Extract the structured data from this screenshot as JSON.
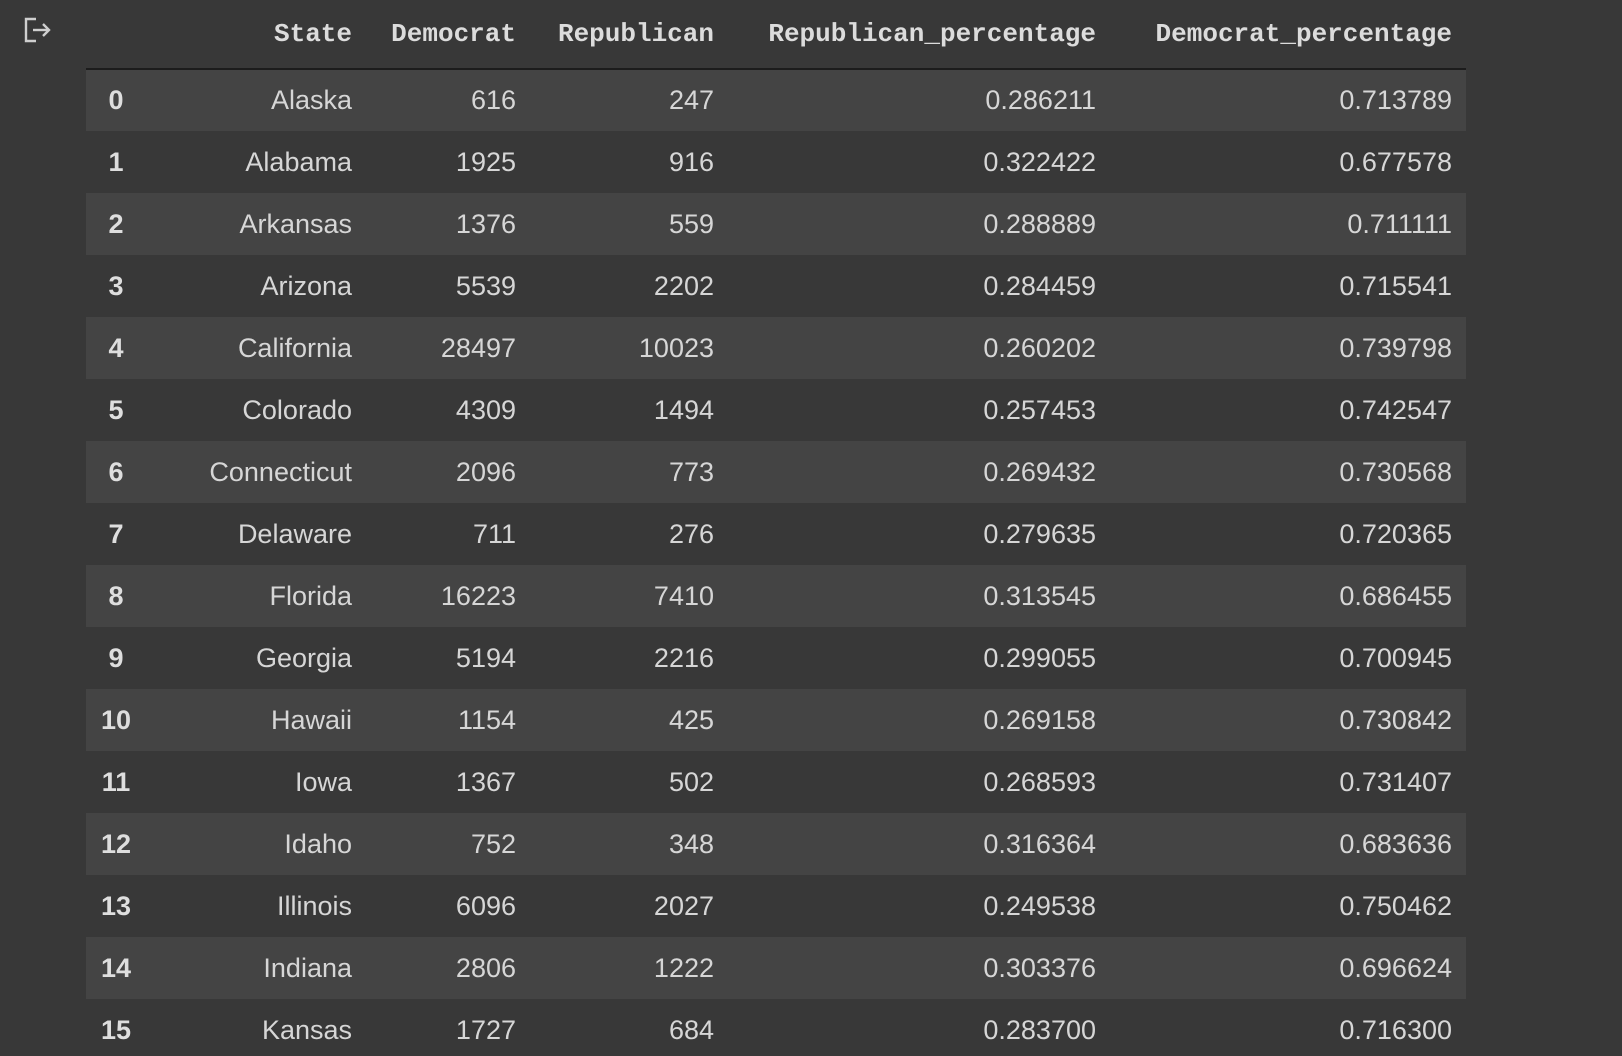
{
  "output": {
    "icon": "output-arrow-icon"
  },
  "table": {
    "columns": [
      "",
      "State",
      "Democrat",
      "Republican",
      "Republican_percentage",
      "Democrat_percentage"
    ],
    "rows": [
      {
        "index": "0",
        "state": "Alaska",
        "democrat": "616",
        "republican": "247",
        "republican_percentage": "0.286211",
        "democrat_percentage": "0.713789"
      },
      {
        "index": "1",
        "state": "Alabama",
        "democrat": "1925",
        "republican": "916",
        "republican_percentage": "0.322422",
        "democrat_percentage": "0.677578"
      },
      {
        "index": "2",
        "state": "Arkansas",
        "democrat": "1376",
        "republican": "559",
        "republican_percentage": "0.288889",
        "democrat_percentage": "0.711111"
      },
      {
        "index": "3",
        "state": "Arizona",
        "democrat": "5539",
        "republican": "2202",
        "republican_percentage": "0.284459",
        "democrat_percentage": "0.715541"
      },
      {
        "index": "4",
        "state": "California",
        "democrat": "28497",
        "republican": "10023",
        "republican_percentage": "0.260202",
        "democrat_percentage": "0.739798"
      },
      {
        "index": "5",
        "state": "Colorado",
        "democrat": "4309",
        "republican": "1494",
        "republican_percentage": "0.257453",
        "democrat_percentage": "0.742547"
      },
      {
        "index": "6",
        "state": "Connecticut",
        "democrat": "2096",
        "republican": "773",
        "republican_percentage": "0.269432",
        "democrat_percentage": "0.730568"
      },
      {
        "index": "7",
        "state": "Delaware",
        "democrat": "711",
        "republican": "276",
        "republican_percentage": "0.279635",
        "democrat_percentage": "0.720365"
      },
      {
        "index": "8",
        "state": "Florida",
        "democrat": "16223",
        "republican": "7410",
        "republican_percentage": "0.313545",
        "democrat_percentage": "0.686455"
      },
      {
        "index": "9",
        "state": "Georgia",
        "democrat": "5194",
        "republican": "2216",
        "republican_percentage": "0.299055",
        "democrat_percentage": "0.700945"
      },
      {
        "index": "10",
        "state": "Hawaii",
        "democrat": "1154",
        "republican": "425",
        "republican_percentage": "0.269158",
        "democrat_percentage": "0.730842"
      },
      {
        "index": "11",
        "state": "Iowa",
        "democrat": "1367",
        "republican": "502",
        "republican_percentage": "0.268593",
        "democrat_percentage": "0.731407"
      },
      {
        "index": "12",
        "state": "Idaho",
        "democrat": "752",
        "republican": "348",
        "republican_percentage": "0.316364",
        "democrat_percentage": "0.683636"
      },
      {
        "index": "13",
        "state": "Illinois",
        "democrat": "6096",
        "republican": "2027",
        "republican_percentage": "0.249538",
        "democrat_percentage": "0.750462"
      },
      {
        "index": "14",
        "state": "Indiana",
        "democrat": "2806",
        "republican": "1222",
        "republican_percentage": "0.303376",
        "democrat_percentage": "0.696624"
      },
      {
        "index": "15",
        "state": "Kansas",
        "democrat": "1727",
        "republican": "684",
        "republican_percentage": "0.283700",
        "democrat_percentage": "0.716300"
      }
    ]
  }
}
